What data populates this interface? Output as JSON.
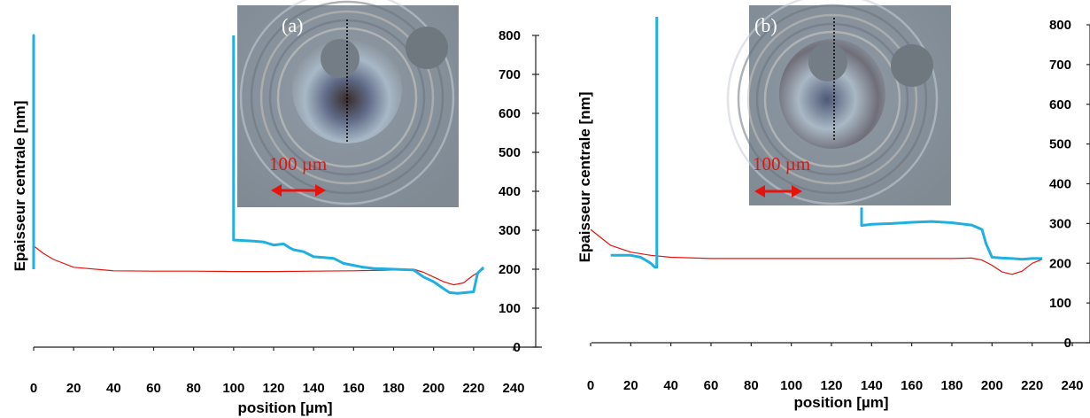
{
  "chart_data": [
    {
      "type": "line",
      "panel_label": "(a)",
      "scale_bar_label": "100 µm",
      "xlabel": "position [µm]",
      "ylabel": "Epaisseur centrale [nm]",
      "xlim": [
        0,
        240
      ],
      "ylim": [
        0,
        800
      ],
      "x_ticks": [
        0,
        20,
        40,
        60,
        80,
        100,
        120,
        140,
        160,
        180,
        200,
        220,
        240
      ],
      "y_ticks": [
        0,
        100,
        200,
        300,
        400,
        500,
        600,
        700,
        800
      ],
      "y_axis_position": "right",
      "series": [
        {
          "color": "#e8120c",
          "points": [
            [
              0,
              260
            ],
            [
              5,
              240
            ],
            [
              10,
              225
            ],
            [
              20,
              205
            ],
            [
              40,
              196
            ],
            [
              60,
              195
            ],
            [
              80,
              195
            ],
            [
              100,
              194
            ],
            [
              120,
              194
            ],
            [
              140,
              195
            ],
            [
              160,
              196
            ],
            [
              180,
              198
            ],
            [
              190,
              200
            ],
            [
              195,
              192
            ],
            [
              200,
              180
            ],
            [
              205,
              168
            ],
            [
              210,
              160
            ],
            [
              215,
              165
            ],
            [
              220,
              185
            ],
            [
              225,
              200
            ]
          ]
        },
        {
          "color": "#1fb0e0",
          "points": [
            [
              0,
              200
            ],
            [
              0,
              800
            ],
            [
              0,
              200
            ]
          ]
        },
        {
          "color": "#1fb0e0",
          "points": [
            [
              100,
              800
            ],
            [
              100,
              275
            ],
            [
              110,
              272
            ],
            [
              115,
              270
            ],
            [
              120,
              262
            ],
            [
              125,
              265
            ],
            [
              128,
              255
            ],
            [
              130,
              250
            ],
            [
              135,
              245
            ],
            [
              140,
              232
            ],
            [
              145,
              230
            ],
            [
              150,
              228
            ],
            [
              155,
              215
            ],
            [
              160,
              210
            ],
            [
              165,
              205
            ],
            [
              170,
              202
            ],
            [
              180,
              200
            ],
            [
              190,
              198
            ],
            [
              195,
              180
            ],
            [
              200,
              168
            ],
            [
              205,
              150
            ],
            [
              208,
              140
            ],
            [
              212,
              138
            ],
            [
              216,
              140
            ],
            [
              220,
              142
            ],
            [
              222,
              190
            ],
            [
              225,
              205
            ]
          ]
        }
      ]
    },
    {
      "type": "line",
      "panel_label": "(b)",
      "scale_bar_label": "100 µm",
      "xlabel": "position [µm]",
      "ylabel": "Epaisseur centrale [nm]",
      "xlim": [
        0,
        240
      ],
      "ylim": [
        0,
        800
      ],
      "x_ticks": [
        0,
        20,
        40,
        60,
        80,
        100,
        120,
        140,
        160,
        180,
        200,
        220,
        240
      ],
      "y_ticks": [
        0,
        100,
        200,
        300,
        400,
        500,
        600,
        700,
        800
      ],
      "y_axis_position": "right",
      "series": [
        {
          "color": "#e8120c",
          "points": [
            [
              0,
              285
            ],
            [
              5,
              265
            ],
            [
              10,
              245
            ],
            [
              20,
              228
            ],
            [
              30,
              220
            ],
            [
              40,
              215
            ],
            [
              60,
              212
            ],
            [
              80,
              212
            ],
            [
              100,
              212
            ],
            [
              120,
              212
            ],
            [
              140,
              212
            ],
            [
              160,
              212
            ],
            [
              180,
              212
            ],
            [
              190,
              213
            ],
            [
              195,
              208
            ],
            [
              200,
              195
            ],
            [
              205,
              178
            ],
            [
              210,
              172
            ],
            [
              215,
              180
            ],
            [
              220,
              200
            ],
            [
              225,
              210
            ]
          ]
        },
        {
          "color": "#1fb0e0",
          "points": [
            [
              10,
              220
            ],
            [
              20,
              220
            ],
            [
              25,
              215
            ],
            [
              30,
              200
            ],
            [
              32,
              190
            ],
            [
              33,
              190
            ],
            [
              33,
              820
            ]
          ]
        },
        {
          "color": "#1fb0e0",
          "points": [
            [
              135,
              340
            ],
            [
              135,
              295
            ],
            [
              140,
              298
            ],
            [
              150,
              300
            ],
            [
              160,
              303
            ],
            [
              170,
              305
            ],
            [
              180,
              302
            ],
            [
              190,
              296
            ],
            [
              195,
              285
            ],
            [
              197,
              250
            ],
            [
              200,
              215
            ],
            [
              205,
              213
            ],
            [
              210,
              212
            ],
            [
              215,
              210
            ],
            [
              220,
              212
            ],
            [
              225,
              212
            ]
          ]
        }
      ]
    }
  ]
}
